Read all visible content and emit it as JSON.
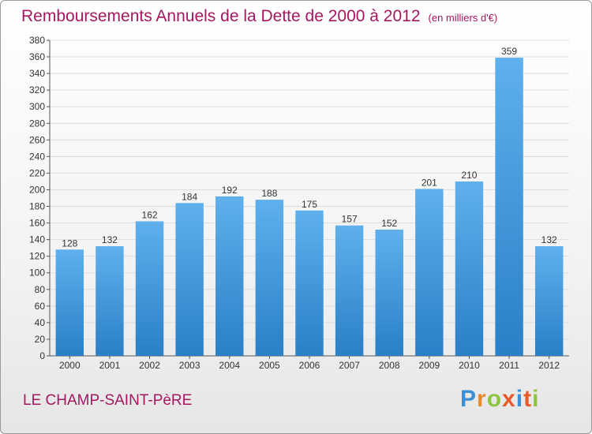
{
  "title": "Remboursements Annuels de la Dette de 2000 à 2012",
  "subtitle": "(en milliers d'€)",
  "location": "LE CHAMP-SAINT-PèRE",
  "logo": {
    "letters": [
      "P",
      "r",
      "o",
      "x",
      "i",
      "t",
      "i"
    ],
    "colors": [
      "#3a8fd6",
      "#e8892a",
      "#8cc63e",
      "#e85a2a",
      "#3a8fd6",
      "#e85a2a",
      "#8cc63e"
    ]
  },
  "colors": {
    "bar": "#3f97de",
    "bar_light": "#5fb0ec",
    "bar_dark": "#2a7fc6",
    "title": "#a5175f"
  },
  "chart_data": {
    "type": "bar",
    "title": "Remboursements Annuels de la Dette de 2000 à 2012",
    "xlabel": "",
    "ylabel": "",
    "categories": [
      "2000",
      "2001",
      "2002",
      "2003",
      "2004",
      "2005",
      "2006",
      "2007",
      "2008",
      "2009",
      "2010",
      "2011",
      "2012"
    ],
    "values": [
      128,
      132,
      162,
      184,
      192,
      188,
      175,
      157,
      152,
      201,
      210,
      359,
      132
    ],
    "ylim": [
      0,
      380
    ],
    "ytick_step": 20,
    "grid": true
  }
}
